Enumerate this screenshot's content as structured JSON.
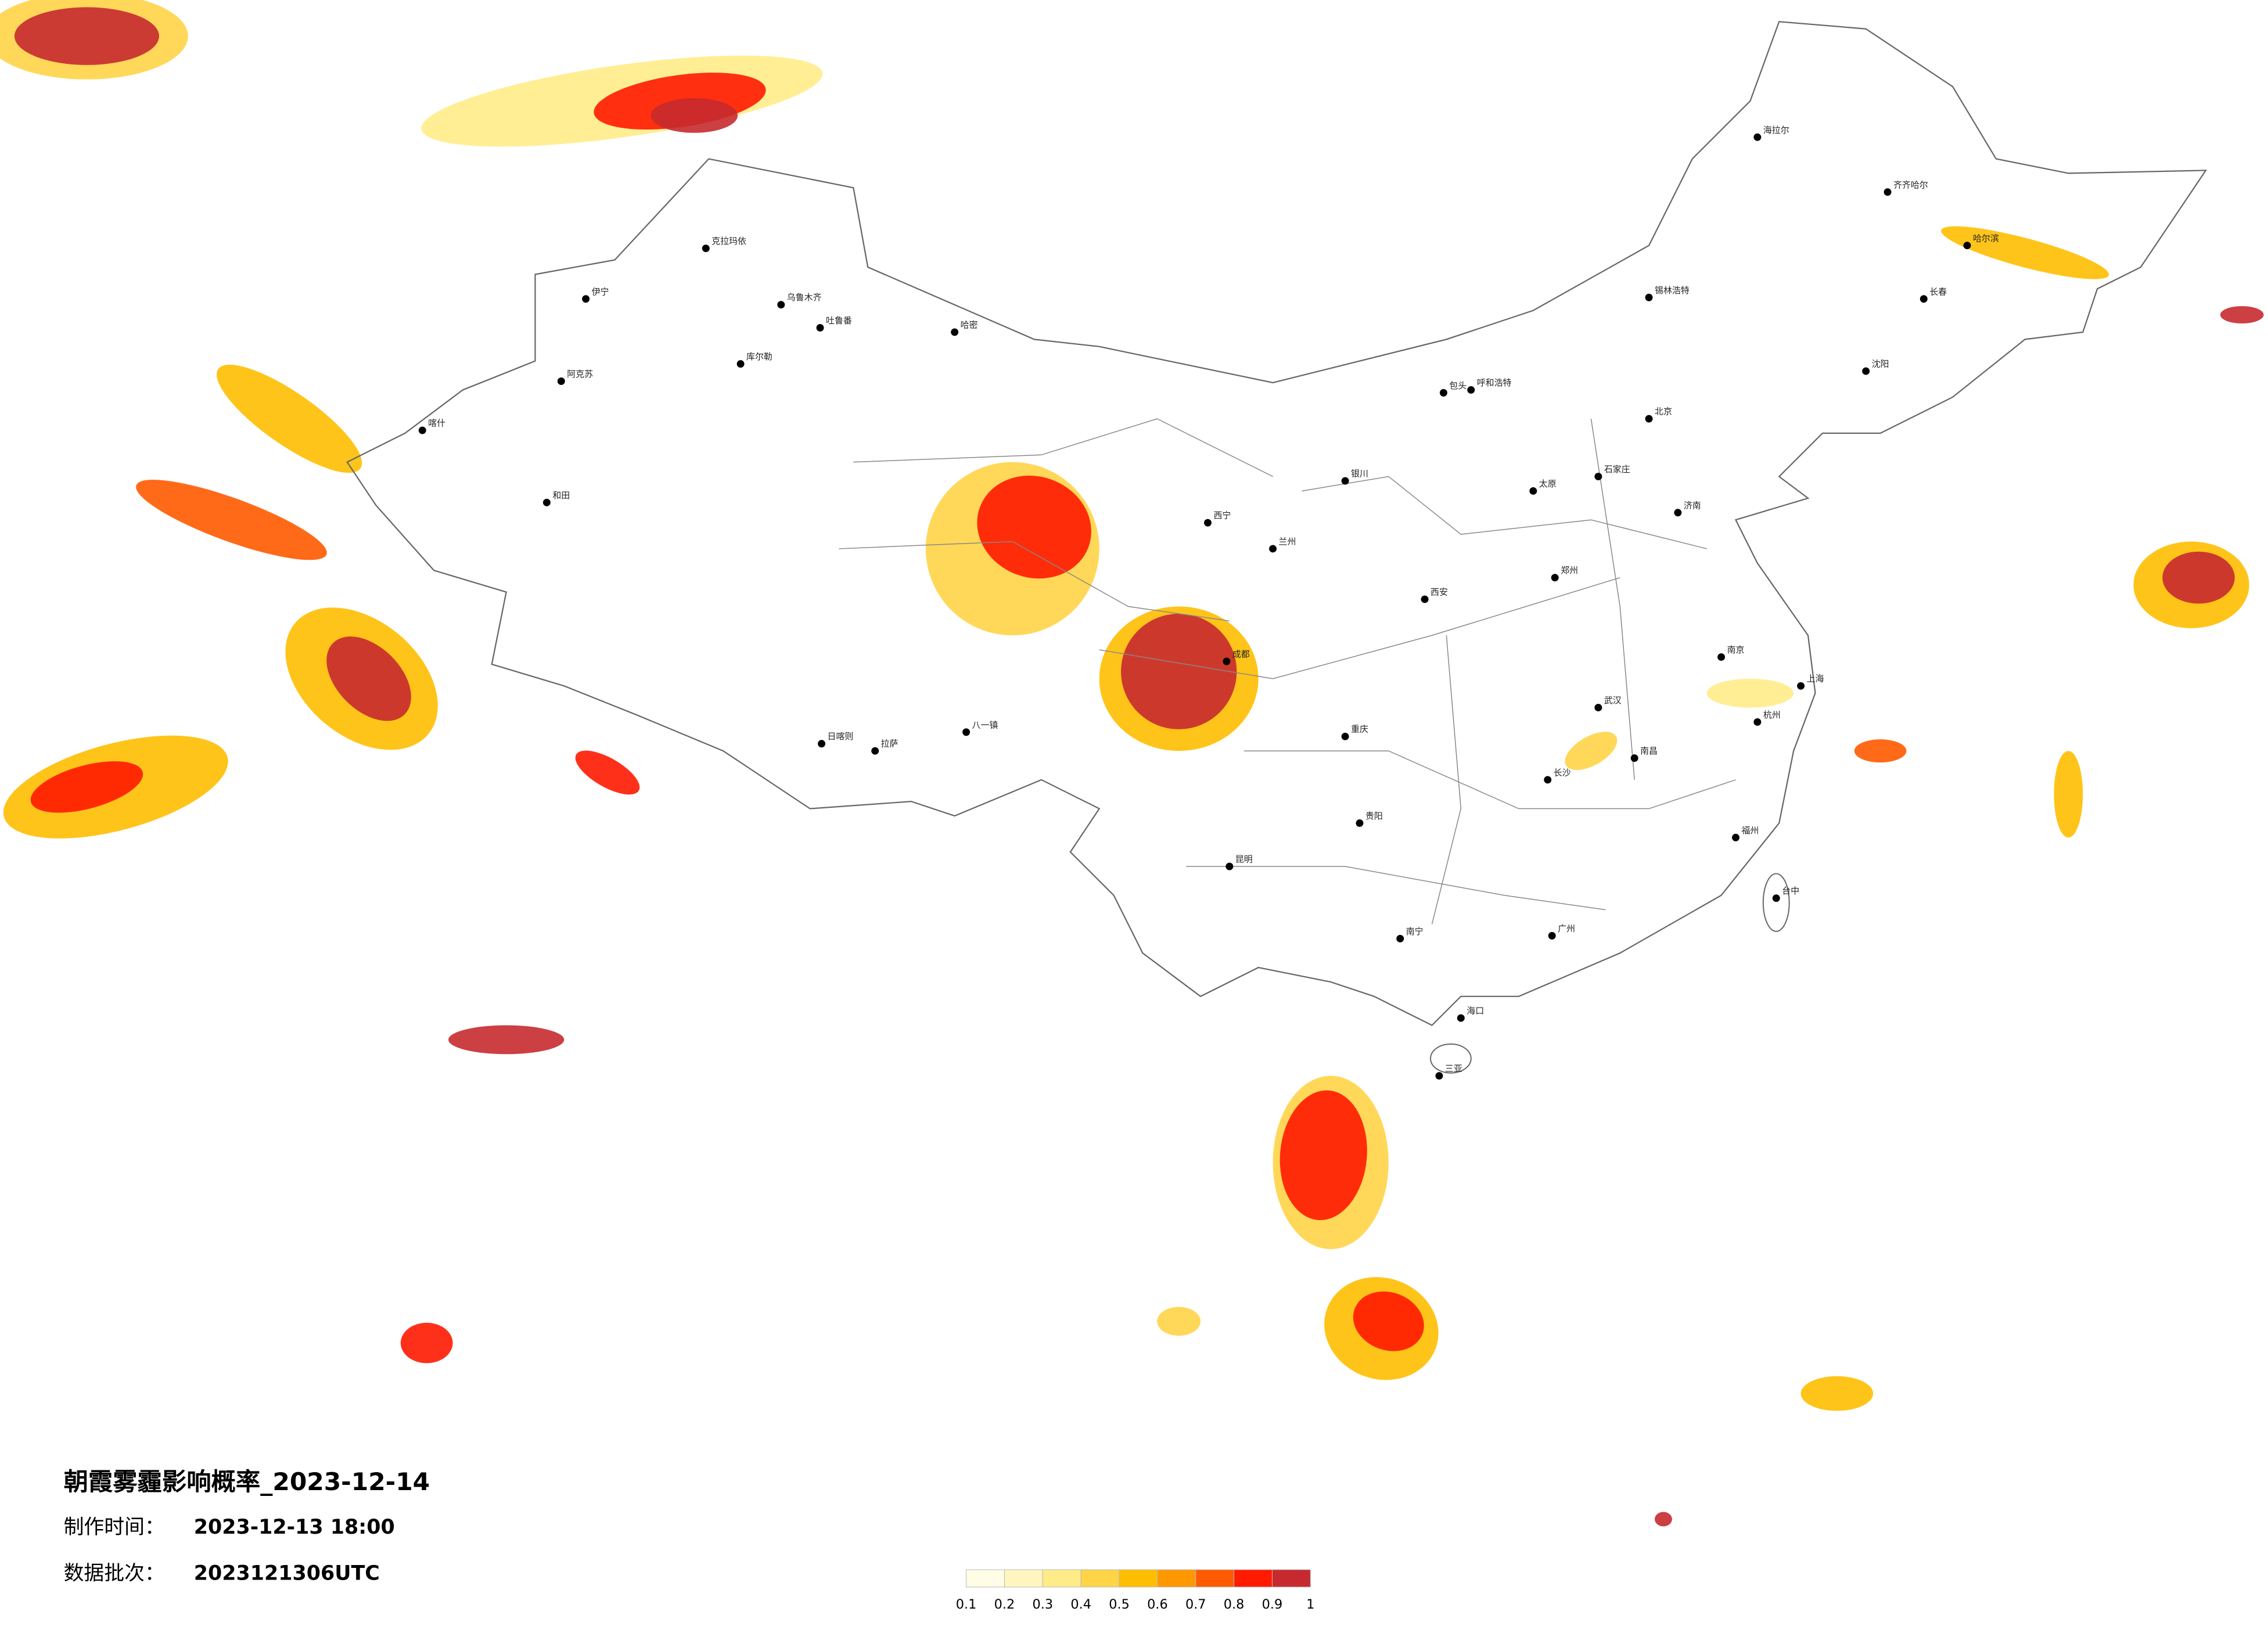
{
  "header": {
    "title": "朝霞雾霾影响概率_2023-12-14",
    "made_label": "制作时间：",
    "made_time": "2023-12-13 18:00",
    "batch_label": "数据批次：",
    "batch": "2023121306UTC"
  },
  "legend": {
    "ticks": [
      0.1,
      0.2,
      0.3,
      0.4,
      0.5,
      0.6,
      0.7,
      0.8,
      0.9,
      1
    ],
    "colors": [
      "#fffde6",
      "#fff6bf",
      "#ffec88",
      "#ffd447",
      "#ffbe00",
      "#ff9800",
      "#ff5a00",
      "#ff1a00",
      "#c62a2f"
    ]
  },
  "cities": [
    "克拉玛依",
    "伊宁",
    "乌鲁木齐",
    "吐鲁番",
    "哈密",
    "库尔勒",
    "阿克苏",
    "喀什",
    "和田",
    "日喀则",
    "拉萨",
    "八一镇",
    "海拉尔",
    "齐齐哈尔",
    "哈尔滨",
    "长春",
    "沈阳",
    "北京",
    "呼和浩特",
    "锡林浩特",
    "包头",
    "银川",
    "兰州",
    "西安",
    "郑州",
    "济南",
    "太原",
    "石家庄",
    "武汉",
    "南京",
    "上海",
    "杭州",
    "南昌",
    "长沙",
    "成都",
    "重庆",
    "贵阳",
    "昆明",
    "南宁",
    "广州",
    "福州",
    "台中",
    "海口",
    "三亚",
    "西宁"
  ]
}
